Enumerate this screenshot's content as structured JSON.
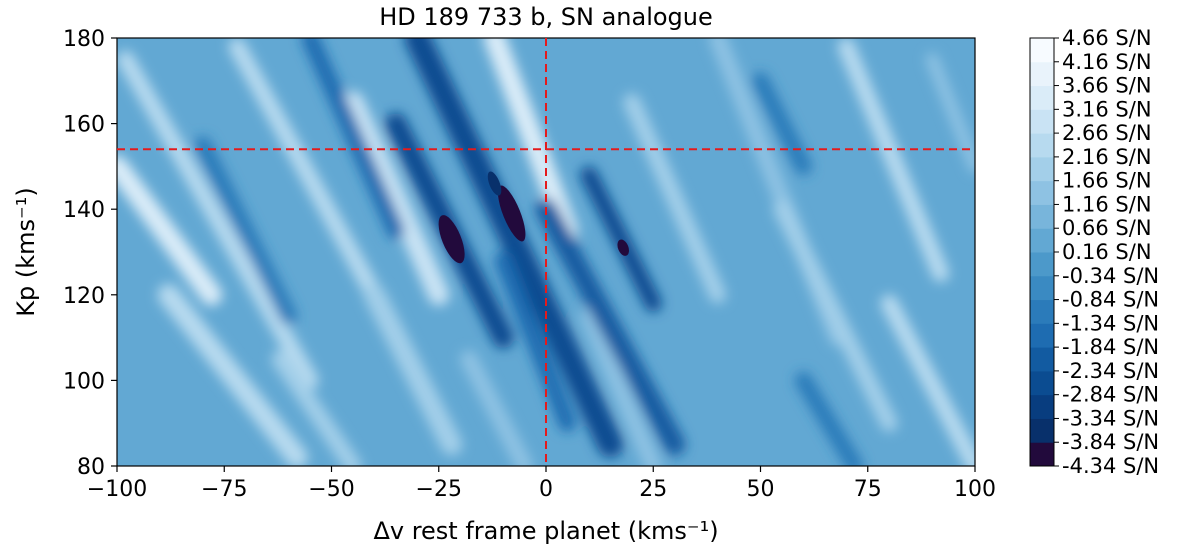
{
  "chart_data": {
    "type": "heatmap",
    "title": "HD 189 733 b, SN analogue",
    "xlabel": "Δv rest frame planet (kms⁻¹)",
    "ylabel": "Kp (kms⁻¹)",
    "xlim": [
      -100,
      100
    ],
    "ylim": [
      80,
      180
    ],
    "x_ticks": [
      -100,
      -75,
      -50,
      -25,
      0,
      25,
      50,
      75,
      100
    ],
    "x_tick_labels": [
      "−100",
      "−75",
      "−50",
      "−25",
      "0",
      "25",
      "50",
      "75",
      "100"
    ],
    "y_ticks": [
      80,
      100,
      120,
      140,
      160,
      180
    ],
    "y_tick_labels": [
      "80",
      "100",
      "120",
      "140",
      "160",
      "180"
    ],
    "marker_lines": {
      "x": 0,
      "y": 154,
      "color": "#e41a1c",
      "style": "dashed"
    },
    "colorbar": {
      "levels": [
        "-4.34 S/N",
        "-3.84 S/N",
        "-3.34 S/N",
        "-2.84 S/N",
        "-2.34 S/N",
        "-1.84 S/N",
        "-1.34 S/N",
        "-0.84 S/N",
        "-0.34 S/N",
        "0.16 S/N",
        "0.66 S/N",
        "1.16 S/N",
        "1.66 S/N",
        "2.16 S/N",
        "2.66 S/N",
        "3.16 S/N",
        "3.66 S/N",
        "4.16 S/N",
        "4.66 S/N"
      ],
      "colors": [
        "#220a3c",
        "#08306b",
        "#083d7f",
        "#0b4c91",
        "#125ba1",
        "#1e6cb1",
        "#2b7bba",
        "#3a8ac2",
        "#4c99ca",
        "#62a8d3",
        "#78b5db",
        "#8ec2e3",
        "#a3cfe9",
        "#b7daef",
        "#c9e3f4",
        "#daecf8",
        "#e9f3fb",
        "#f7fbff"
      ],
      "range": [
        -4.34,
        4.66
      ]
    },
    "features": [
      {
        "kind": "stripe",
        "x0": -98,
        "y0": 175,
        "x1": -55,
        "y1": 100,
        "v": 2.4,
        "w": 4
      },
      {
        "kind": "stripe",
        "x0": -100,
        "y0": 150,
        "x1": -78,
        "y1": 120,
        "v": 3.2,
        "w": 5
      },
      {
        "kind": "stripe",
        "x0": -72,
        "y0": 178,
        "x1": -40,
        "y1": 120,
        "v": 2.2,
        "w": 4
      },
      {
        "kind": "stripe",
        "x0": -45,
        "y0": 165,
        "x1": -25,
        "y1": 120,
        "v": 3.0,
        "w": 5
      },
      {
        "kind": "stripe",
        "x0": -88,
        "y0": 120,
        "x1": -58,
        "y1": 82,
        "v": 2.4,
        "w": 5
      },
      {
        "kind": "stripe",
        "x0": -62,
        "y0": 105,
        "x1": -45,
        "y1": 80,
        "v": 2.0,
        "w": 4
      },
      {
        "kind": "stripe",
        "x0": -12,
        "y0": 180,
        "x1": 5,
        "y1": 135,
        "v": 3.6,
        "w": 5
      },
      {
        "kind": "stripe",
        "x0": -40,
        "y0": 120,
        "x1": -22,
        "y1": 85,
        "v": 1.7,
        "w": 5
      },
      {
        "kind": "stripe",
        "x0": -18,
        "y0": 105,
        "x1": -5,
        "y1": 80,
        "v": 1.4,
        "w": 4
      },
      {
        "kind": "stripe",
        "x0": 10,
        "y0": 115,
        "x1": 25,
        "y1": 80,
        "v": 1.6,
        "w": 4
      },
      {
        "kind": "stripe",
        "x0": 20,
        "y0": 165,
        "x1": 40,
        "y1": 120,
        "v": 1.8,
        "w": 4
      },
      {
        "kind": "stripe",
        "x0": 40,
        "y0": 180,
        "x1": 68,
        "y1": 110,
        "v": 1.6,
        "w": 4
      },
      {
        "kind": "stripe",
        "x0": 55,
        "y0": 140,
        "x1": 80,
        "y1": 90,
        "v": 2.0,
        "w": 4
      },
      {
        "kind": "stripe",
        "x0": 70,
        "y0": 178,
        "x1": 92,
        "y1": 125,
        "v": 2.2,
        "w": 4
      },
      {
        "kind": "stripe",
        "x0": 80,
        "y0": 118,
        "x1": 100,
        "y1": 80,
        "v": 2.6,
        "w": 4
      },
      {
        "kind": "stripe",
        "x0": 90,
        "y0": 175,
        "x1": 100,
        "y1": 150,
        "v": 1.4,
        "w": 3
      },
      {
        "kind": "stripe",
        "x0": -30,
        "y0": 180,
        "x1": 15,
        "y1": 85,
        "v": -2.8,
        "w": 6
      },
      {
        "kind": "stripe",
        "x0": -35,
        "y0": 160,
        "x1": -10,
        "y1": 110,
        "v": -2.4,
        "w": 5
      },
      {
        "kind": "stripe",
        "x0": 0,
        "y0": 140,
        "x1": 30,
        "y1": 85,
        "v": -2.0,
        "w": 5
      },
      {
        "kind": "stripe",
        "x0": 10,
        "y0": 148,
        "x1": 25,
        "y1": 118,
        "v": -2.4,
        "w": 4
      },
      {
        "kind": "stripe",
        "x0": -55,
        "y0": 180,
        "x1": -35,
        "y1": 135,
        "v": -1.6,
        "w": 4
      },
      {
        "kind": "stripe",
        "x0": -80,
        "y0": 155,
        "x1": -60,
        "y1": 115,
        "v": -1.0,
        "w": 4
      },
      {
        "kind": "stripe",
        "x0": 50,
        "y0": 170,
        "x1": 60,
        "y1": 150,
        "v": -1.0,
        "w": 4
      },
      {
        "kind": "stripe",
        "x0": 60,
        "y0": 100,
        "x1": 72,
        "y1": 80,
        "v": -1.0,
        "w": 4
      },
      {
        "kind": "stripe",
        "x0": -10,
        "y0": 128,
        "x1": 5,
        "y1": 90,
        "v": -1.8,
        "w": 4
      },
      {
        "kind": "blob",
        "x": -22,
        "y": 133,
        "rx": 2.2,
        "ry": 6,
        "v": -4.4
      },
      {
        "kind": "blob",
        "x": -8,
        "y": 139,
        "rx": 2.0,
        "ry": 7,
        "v": -4.3
      },
      {
        "kind": "blob",
        "x": -12,
        "y": 146,
        "rx": 1.2,
        "ry": 3,
        "v": -3.8
      },
      {
        "kind": "blob",
        "x": 18,
        "y": 131,
        "rx": 1.2,
        "ry": 2,
        "v": -3.9
      }
    ]
  }
}
